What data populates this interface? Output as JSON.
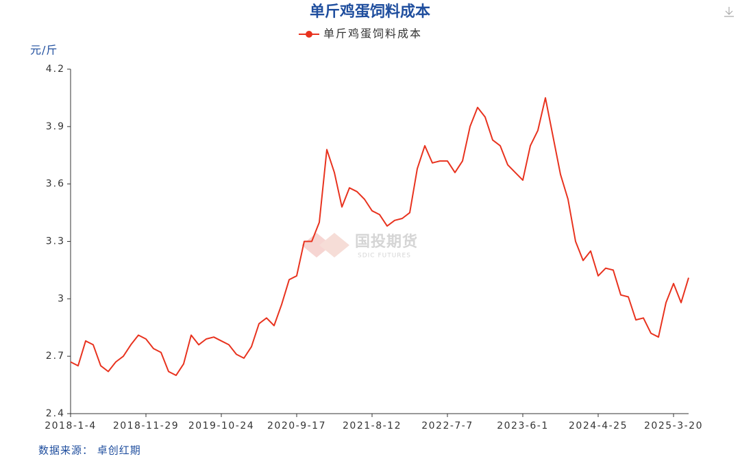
{
  "chart_data": {
    "type": "line",
    "title": "单斤鸡蛋饲料成本",
    "y_unit": "元/斤",
    "source": "数据来源： 卓创红期",
    "watermark": [
      "国投期货",
      "SDIC FUTURES"
    ],
    "categories": [
      "2018-1-4",
      null,
      null,
      null,
      null,
      null,
      null,
      null,
      null,
      null,
      "2018-11-29",
      null,
      null,
      null,
      null,
      null,
      null,
      null,
      null,
      null,
      "2019-10-24",
      null,
      null,
      null,
      null,
      null,
      null,
      null,
      null,
      null,
      "2020-9-17",
      null,
      null,
      null,
      null,
      null,
      null,
      null,
      null,
      null,
      "2021-8-12",
      null,
      null,
      null,
      null,
      null,
      null,
      null,
      null,
      null,
      "2022-7-7",
      null,
      null,
      null,
      null,
      null,
      null,
      null,
      null,
      null,
      "2023-6-1",
      null,
      null,
      null,
      null,
      null,
      null,
      null,
      null,
      null,
      "2024-4-25",
      null,
      null,
      null,
      null,
      null,
      null,
      null,
      null,
      null,
      "2025-3-20",
      null,
      null
    ],
    "series": [
      {
        "name": "单斤鸡蛋饲料成本",
        "color": "#e8321e",
        "values": [
          2.67,
          2.65,
          2.78,
          2.76,
          2.65,
          2.62,
          2.67,
          2.7,
          2.76,
          2.81,
          2.79,
          2.74,
          2.72,
          2.62,
          2.6,
          2.66,
          2.81,
          2.76,
          2.79,
          2.8,
          2.78,
          2.76,
          2.71,
          2.69,
          2.75,
          2.87,
          2.9,
          2.86,
          2.97,
          3.1,
          3.12,
          3.3,
          3.3,
          3.4,
          3.78,
          3.66,
          3.48,
          3.58,
          3.56,
          3.52,
          3.46,
          3.44,
          3.38,
          3.41,
          3.42,
          3.45,
          3.68,
          3.8,
          3.71,
          3.72,
          3.72,
          3.66,
          3.72,
          3.9,
          4.0,
          3.95,
          3.83,
          3.8,
          3.7,
          3.66,
          3.62,
          3.8,
          3.88,
          4.05,
          3.85,
          3.65,
          3.52,
          3.3,
          3.2,
          3.25,
          3.12,
          3.16,
          3.15,
          3.02,
          3.01,
          2.89,
          2.9,
          2.82,
          2.8,
          2.98,
          3.08,
          2.98,
          3.11
        ]
      }
    ],
    "ylim": [
      2.4,
      4.2
    ],
    "yticks": [
      2.4,
      2.7,
      3,
      3.3,
      3.6,
      3.9,
      4.2
    ]
  }
}
